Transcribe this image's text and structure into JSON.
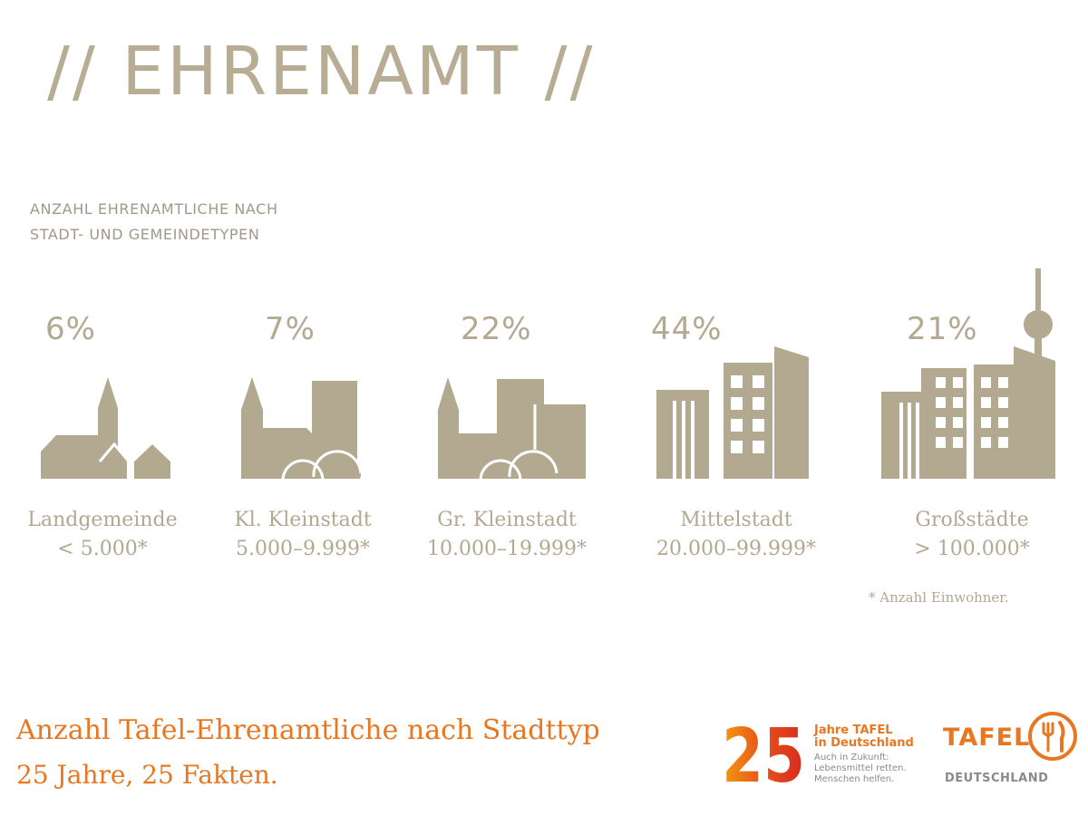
{
  "header": {
    "title": "// EHRENAMT //",
    "subtitle_line1": "ANZAHL EHRENAMTLICHE NACH",
    "subtitle_line2": "STADT- UND GEMEINDETYPEN"
  },
  "chart_data": {
    "type": "table",
    "title": "ANZAHL EHRENAMTLICHE NACH STADT- UND GEMEINDETYPEN",
    "categories": [
      {
        "percent": 6,
        "label": "6%",
        "name": "Landgemeinde",
        "range": "< 5.000*",
        "icon": "village-icon"
      },
      {
        "percent": 7,
        "label": "7%",
        "name": "Kl. Kleinstadt",
        "range": "5.000–9.999*",
        "icon": "small-town-icon"
      },
      {
        "percent": 22,
        "label": "22%",
        "name": "Gr. Kleinstadt",
        "range": "10.000–19.999*",
        "icon": "large-town-icon"
      },
      {
        "percent": 44,
        "label": "44%",
        "name": "Mittelstadt",
        "range": "20.000–99.999*",
        "icon": "medium-city-icon"
      },
      {
        "percent": 21,
        "label": "21%",
        "name": "Großstädte",
        "range": "> 100.000*",
        "icon": "big-city-icon"
      }
    ],
    "footnote": "* Anzahl Einwohner."
  },
  "footer": {
    "title": "Anzahl Tafel-Ehrenamtliche nach Stadttyp",
    "subtitle": "25 Jahre, 25 Fakten.",
    "anniversary_number": "25",
    "anniversary_line1": "Jahre TAFEL",
    "anniversary_line2": "in Deutschland",
    "anniversary_line3": "Auch in Zukunft:",
    "anniversary_line4": "Lebensmittel retten.",
    "anniversary_line5": "Menschen helfen.",
    "brand_name": "TAFEL",
    "brand_sub": "DEUTSCHLAND"
  },
  "colors": {
    "taupe": "#b3a890",
    "orange": "#e87722",
    "grey": "#8a8a8a"
  }
}
